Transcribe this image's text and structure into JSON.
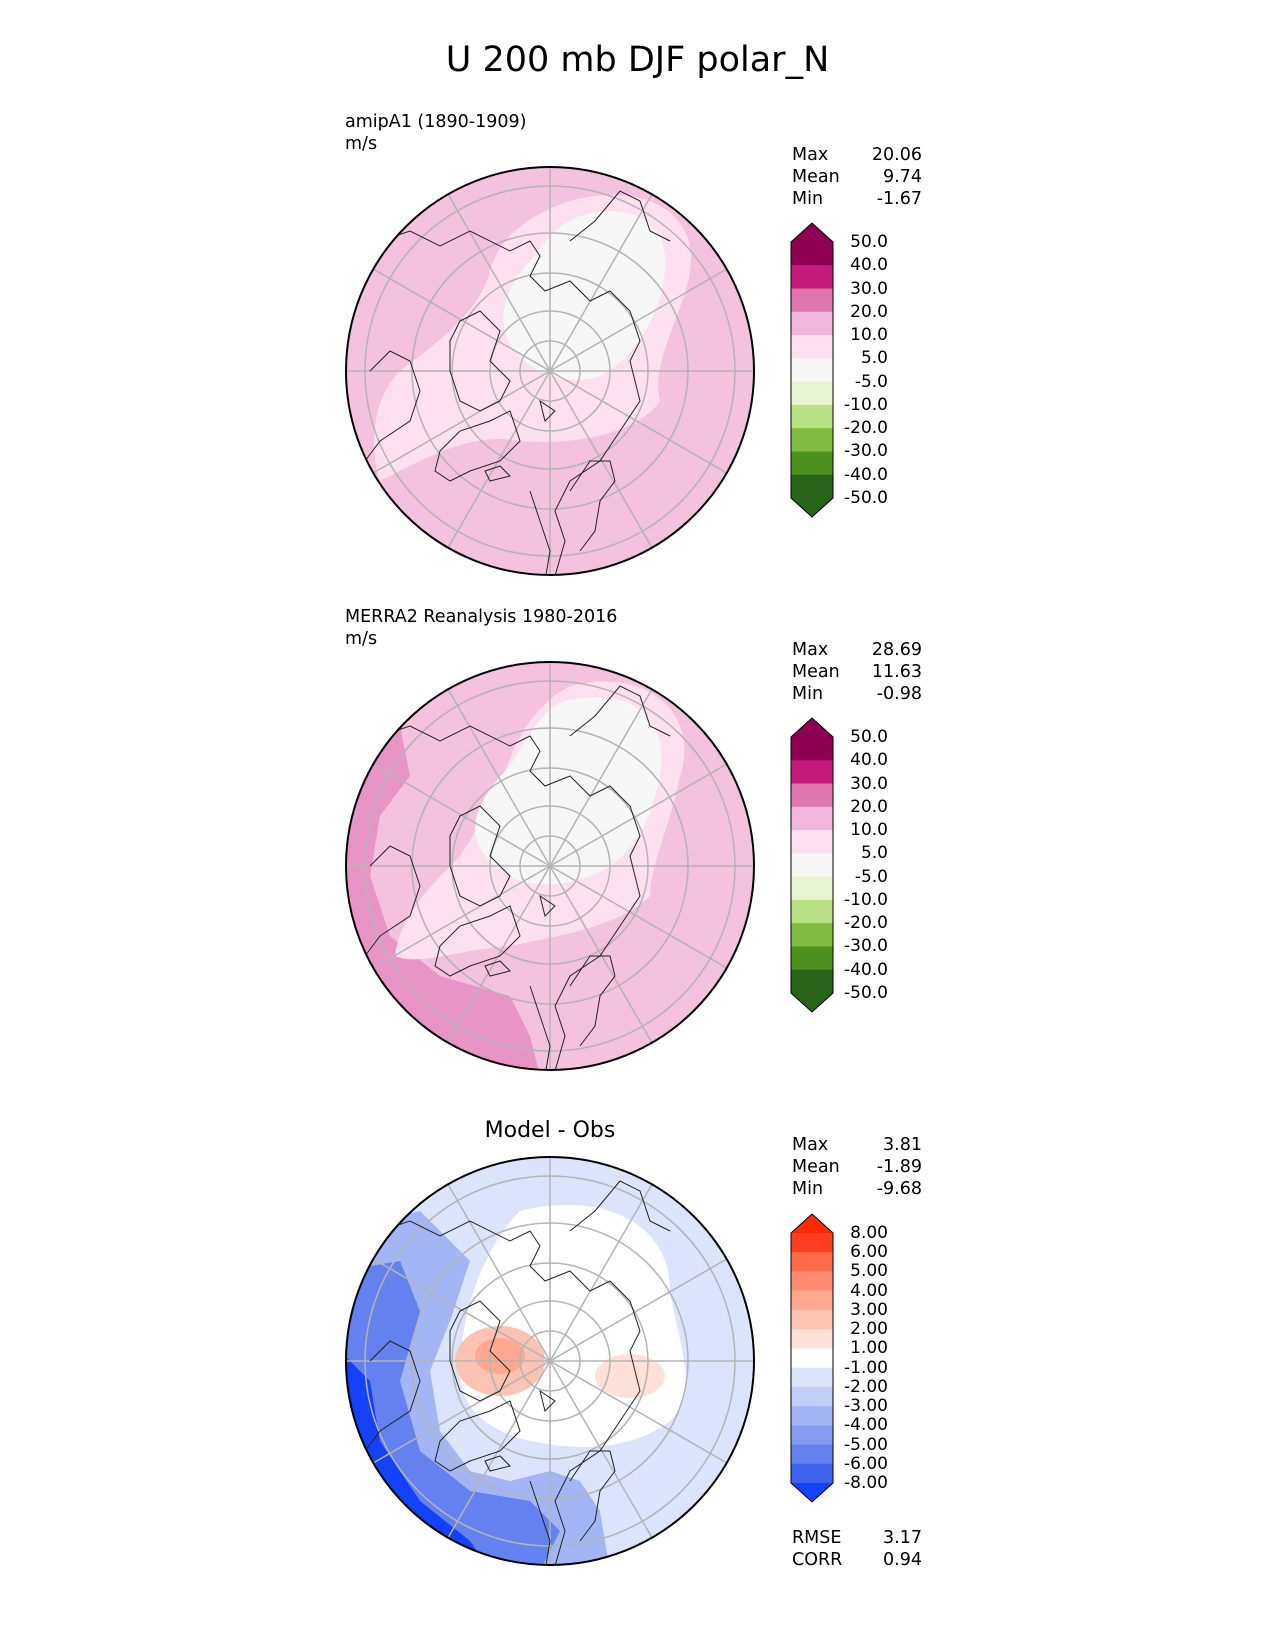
{
  "title": "U 200 mb DJF polar_N",
  "panels": [
    {
      "id": "test",
      "label": "amipA1 (1890-1909)",
      "units": "m/s",
      "stats": {
        "max": "20.06",
        "mean": "9.74",
        "min": "-1.67"
      },
      "stat_labels": {
        "max": "Max",
        "mean": "Mean",
        "min": "Min"
      },
      "colorbar": {
        "levels": [
          "50.0",
          "40.0",
          "30.0",
          "20.0",
          "10.0",
          "5.0",
          "-5.0",
          "-10.0",
          "-20.0",
          "-30.0",
          "-40.0",
          "-50.0"
        ],
        "colors": [
          "#8e0152",
          "#c51b7d",
          "#de77ae",
          "#f1b6da",
          "#fde0ef",
          "#f7f7f7",
          "#e6f5d0",
          "#b8e186",
          "#7fbc41",
          "#4d9221",
          "#276419"
        ],
        "top_extend": "#8e0152",
        "bottom_extend": "#276419"
      }
    },
    {
      "id": "reference",
      "label": "MERRA2 Reanalysis 1980-2016",
      "units": "m/s",
      "stats": {
        "max": "28.69",
        "mean": "11.63",
        "min": "-0.98"
      },
      "stat_labels": {
        "max": "Max",
        "mean": "Mean",
        "min": "Min"
      },
      "colorbar": {
        "levels": [
          "50.0",
          "40.0",
          "30.0",
          "20.0",
          "10.0",
          "5.0",
          "-5.0",
          "-10.0",
          "-20.0",
          "-30.0",
          "-40.0",
          "-50.0"
        ],
        "colors": [
          "#8e0152",
          "#c51b7d",
          "#de77ae",
          "#f1b6da",
          "#fde0ef",
          "#f7f7f7",
          "#e6f5d0",
          "#b8e186",
          "#7fbc41",
          "#4d9221",
          "#276419"
        ],
        "top_extend": "#8e0152",
        "bottom_extend": "#276419"
      }
    },
    {
      "id": "diff",
      "center_title": "Model - Obs",
      "stats": {
        "max": "3.81",
        "mean": "-1.89",
        "min": "-9.68"
      },
      "stat_labels": {
        "max": "Max",
        "mean": "Mean",
        "min": "Min"
      },
      "extra_stats": {
        "rmse_label": "RMSE",
        "rmse": "3.17",
        "corr_label": "CORR",
        "corr": "0.94"
      },
      "colorbar": {
        "levels": [
          "8.00",
          "6.00",
          "5.00",
          "4.00",
          "3.00",
          "2.00",
          "1.00",
          "-1.00",
          "-2.00",
          "-3.00",
          "-4.00",
          "-5.00",
          "-6.00",
          "-8.00"
        ],
        "colors": [
          "#ff3d1f",
          "#ff6a4a",
          "#ff8c70",
          "#fda88f",
          "#fcc3b2",
          "#fde0d8",
          "#ffffff",
          "#dce4fb",
          "#c2cdf8",
          "#a4b5f6",
          "#859cf3",
          "#6381ef",
          "#3f62ec"
        ],
        "top_extend": "#ff2a00",
        "bottom_extend": "#1441fa"
      }
    }
  ]
}
